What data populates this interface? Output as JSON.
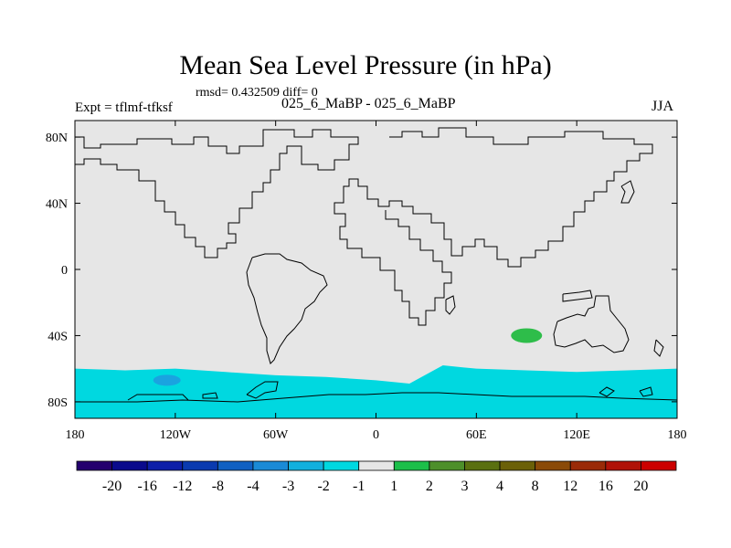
{
  "title": "Mean Sea Level Pressure (in hPa)",
  "stats": "rmsd= 0.432509 diff= 0",
  "left_label": "Expt = tflmf-tfksf",
  "center_label": "025_6_MaBP - 025_6_MaBP",
  "right_label": "JJA",
  "chart_data": {
    "type": "heatmap",
    "title": "Mean Sea Level Pressure (in hPa)",
    "projection": "cylindrical equidistant",
    "xlim": [
      -180,
      180
    ],
    "ylim": [
      -90,
      90
    ],
    "x_ticks": [
      {
        "value": -180,
        "label": "180"
      },
      {
        "value": -120,
        "label": "120W"
      },
      {
        "value": -60,
        "label": "60W"
      },
      {
        "value": 0,
        "label": "0"
      },
      {
        "value": 60,
        "label": "60E"
      },
      {
        "value": 120,
        "label": "120E"
      },
      {
        "value": 180,
        "label": "180"
      }
    ],
    "y_ticks": [
      {
        "value": 80,
        "label": "80N"
      },
      {
        "value": 40,
        "label": "40N"
      },
      {
        "value": 0,
        "label": "0"
      },
      {
        "value": -40,
        "label": "40S"
      },
      {
        "value": -80,
        "label": "80S"
      }
    ],
    "background": {
      "range": "-1 to 1",
      "color": "#e6e6e6"
    },
    "regions": [
      {
        "name": "southern-ocean-band",
        "range": "-2 to -1",
        "color": "#00d8e0",
        "lon": [
          -180,
          -150,
          -120,
          -90,
          -60,
          -30,
          0,
          20,
          40,
          60,
          90,
          120,
          150,
          180
        ],
        "lat_north": [
          -60,
          -61,
          -60,
          -62,
          -64,
          -65,
          -67,
          -69,
          -58,
          -60,
          -61,
          -62,
          -61,
          -60
        ]
      },
      {
        "name": "pacific-low",
        "range": "-3 to -2",
        "color": "#1aa3e0",
        "center": [
          -125,
          -67
        ]
      },
      {
        "name": "indian-ocean-high",
        "range": "1 to 2",
        "color": "#2ebd4a",
        "center": [
          90,
          -40
        ]
      }
    ],
    "colorbar": {
      "labels": [
        "-20",
        "-16",
        "-12",
        "-8",
        "-4",
        "-3",
        "-2",
        "-1",
        "1",
        "2",
        "3",
        "4",
        "8",
        "12",
        "16",
        "20"
      ],
      "colors": [
        "#24006e",
        "#0a0a8c",
        "#0d1fa8",
        "#0a3aaf",
        "#1060c2",
        "#1a8ad6",
        "#12b0dd",
        "#00d8e0",
        "#e6e6e6",
        "#1cbf4a",
        "#4d8f2a",
        "#5a7010",
        "#6b6008",
        "#8a4a08",
        "#9a2a08",
        "#b01208",
        "#cc0000"
      ]
    }
  }
}
